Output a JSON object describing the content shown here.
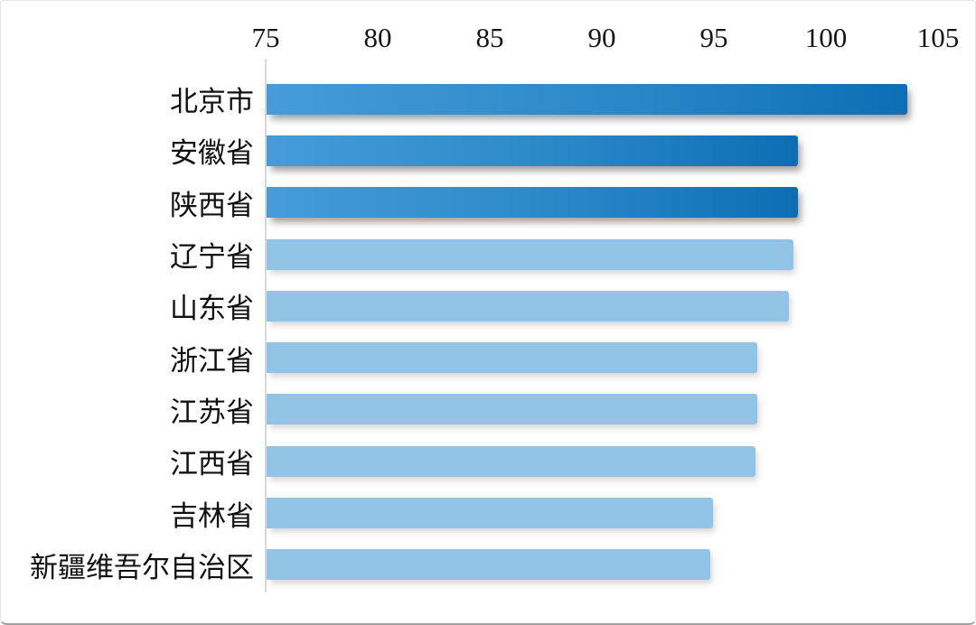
{
  "chart_data": {
    "type": "bar",
    "orientation": "horizontal",
    "title": "",
    "xlabel": "",
    "ylabel": "",
    "categories": [
      "北京市",
      "安徽省",
      "陕西省",
      "辽宁省",
      "山东省",
      "浙江省",
      "江苏省",
      "江西省",
      "吉林省",
      "新疆维吾尔自治区"
    ],
    "values": [
      103.6,
      98.7,
      98.7,
      98.5,
      98.3,
      96.9,
      96.9,
      96.8,
      94.9,
      94.8
    ],
    "xlim": [
      75,
      105
    ],
    "x_ticks": [
      "75",
      "80",
      "85",
      "90",
      "95",
      "100",
      "105"
    ],
    "x_tick_values": [
      75,
      80,
      85,
      90,
      95,
      100,
      105
    ],
    "tick_position": "top",
    "grid": false,
    "legend": "none",
    "dark_bar_indices": [
      0,
      1,
      2
    ],
    "colors": {
      "bar_gradient_start": "#459cd9",
      "bar_gradient_end": "#0d6eb5",
      "bar_light": "#92c4e8",
      "axis_line": "#d9d9d9",
      "tick_text": "#161616"
    }
  }
}
